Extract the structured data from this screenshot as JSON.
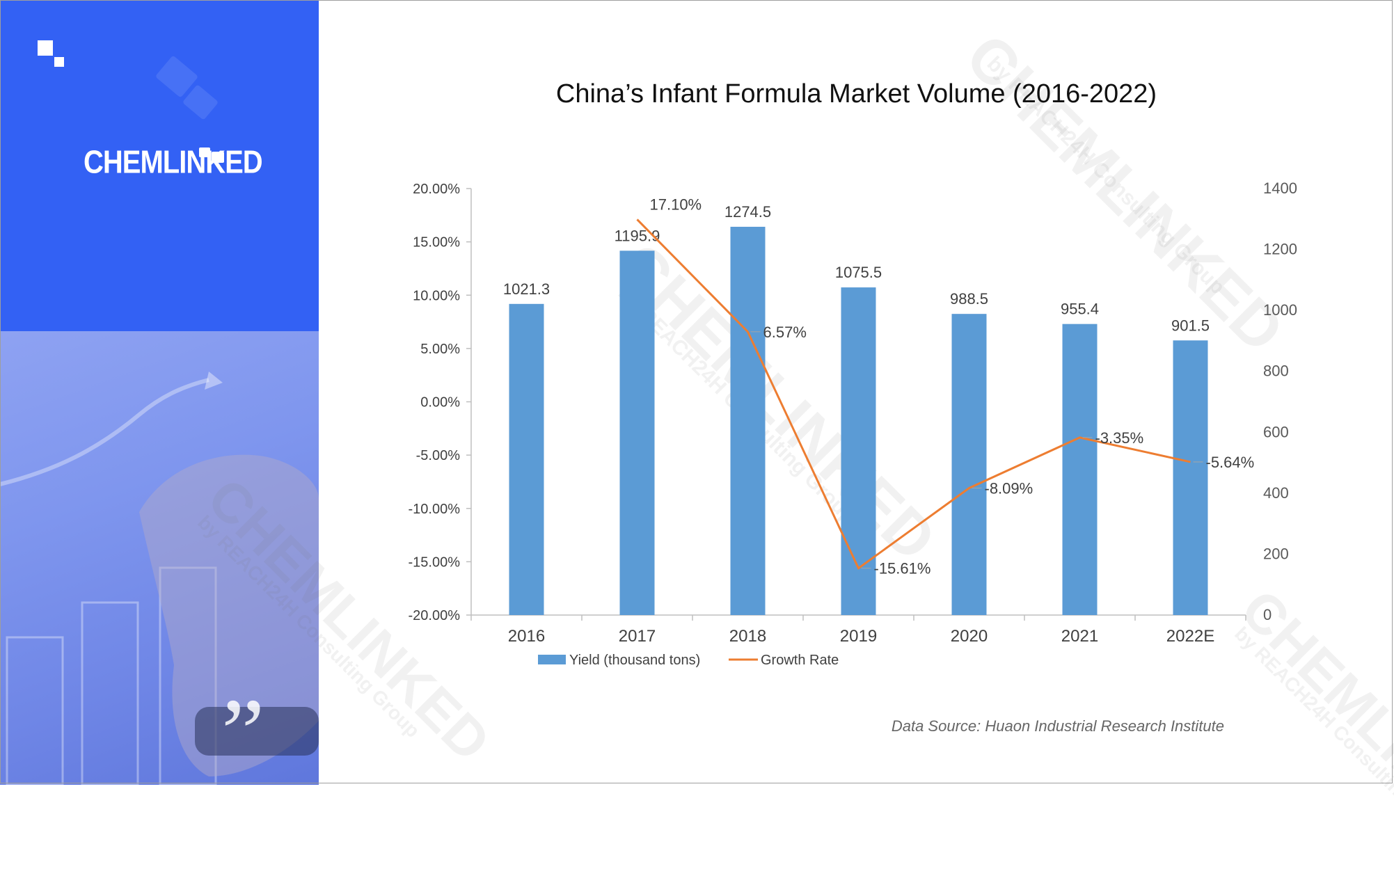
{
  "brand": {
    "logo_text": "CHEMLINKED",
    "watermark": "CHEMLINKED",
    "watermark_sub": "by REACH24H Consulting Group"
  },
  "colors": {
    "left_panel": "#3361f4",
    "bar": "#5b9bd5",
    "line": "#ed7d31",
    "axis": "#bfbfbf"
  },
  "source_note": "Data Source: Huaon Industrial Research Institute",
  "chart_data": {
    "type": "bar",
    "title": "China’s Infant Formula Market Volume (2016-2022)",
    "categories": [
      "2016",
      "2017",
      "2018",
      "2019",
      "2020",
      "2021",
      "2022E"
    ],
    "series": [
      {
        "name": "Yield (thousand tons)",
        "type": "bar",
        "axis": "right",
        "values": [
          1021.3,
          1195.9,
          1274.5,
          1075.5,
          988.5,
          955.4,
          901.5
        ],
        "labels": [
          "1021.3",
          "1195.9",
          "1274.5",
          "1075.5",
          "988.5",
          "955.4",
          "901.5"
        ]
      },
      {
        "name": "Growth Rate",
        "type": "line",
        "axis": "left",
        "x": [
          "2017",
          "2018",
          "2019",
          "2020",
          "2021",
          "2022E"
        ],
        "values": [
          17.1,
          6.57,
          -15.61,
          -8.09,
          -3.35,
          -5.64
        ],
        "labels": [
          "17.10%",
          "6.57%",
          "-15.61%",
          "-8.09%",
          "-3.35%",
          "-5.64%"
        ]
      }
    ],
    "y_left": {
      "range": [
        -20,
        20
      ],
      "ticks": [
        "20.00%",
        "15.00%",
        "10.00%",
        "5.00%",
        "0.00%",
        "-5.00%",
        "-10.00%",
        "-15.00%",
        "-20.00%"
      ]
    },
    "y_right": {
      "range": [
        0,
        1400
      ],
      "ticks": [
        "1400",
        "1200",
        "1000",
        "800",
        "600",
        "400",
        "200",
        "0"
      ]
    },
    "legend_position": "bottom",
    "grid": false
  }
}
